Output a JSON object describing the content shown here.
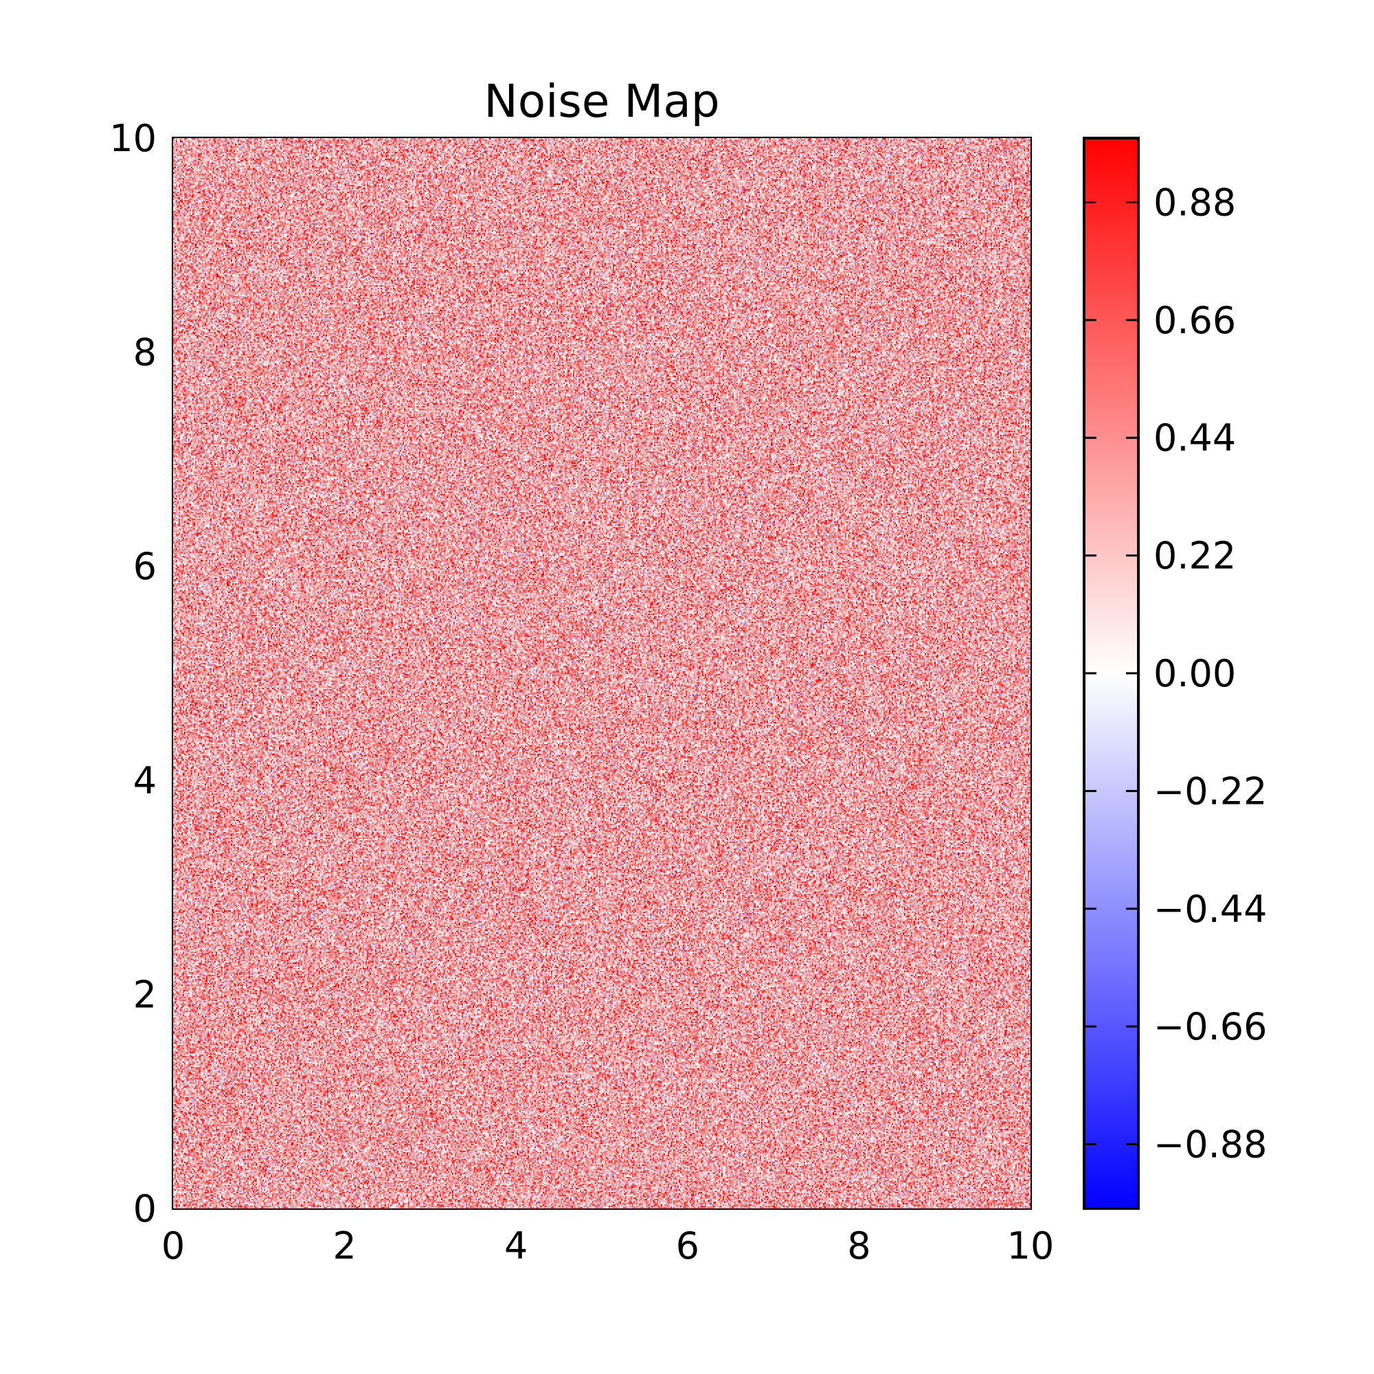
{
  "chart_data": {
    "type": "heatmap",
    "title": "Noise Map",
    "xlabel": "",
    "ylabel": "",
    "xlim": [
      0,
      10
    ],
    "ylim": [
      0,
      10
    ],
    "x_ticks": [
      {
        "value": 0,
        "label": "0"
      },
      {
        "value": 2,
        "label": "2"
      },
      {
        "value": 4,
        "label": "4"
      },
      {
        "value": 6,
        "label": "6"
      },
      {
        "value": 8,
        "label": "8"
      },
      {
        "value": 10,
        "label": "10"
      }
    ],
    "y_ticks": [
      {
        "value": 0,
        "label": "0"
      },
      {
        "value": 2,
        "label": "2"
      },
      {
        "value": 4,
        "label": "4"
      },
      {
        "value": 6,
        "label": "6"
      },
      {
        "value": 8,
        "label": "8"
      },
      {
        "value": 10,
        "label": "10"
      }
    ],
    "colorbar": {
      "colormap": "bwr",
      "vmin": -1.0,
      "vmax": 1.0,
      "colors": [
        "#0000ff",
        "#ffffff",
        "#ff0000"
      ],
      "ticks": [
        {
          "value": 0.88,
          "label": "0.88"
        },
        {
          "value": 0.66,
          "label": "0.66"
        },
        {
          "value": 0.44,
          "label": "0.44"
        },
        {
          "value": 0.22,
          "label": "0.22"
        },
        {
          "value": 0.0,
          "label": "0.00"
        },
        {
          "value": -0.22,
          "label": "−0.22"
        },
        {
          "value": -0.44,
          "label": "−0.44"
        },
        {
          "value": -0.66,
          "label": "−0.66"
        },
        {
          "value": -0.88,
          "label": "−0.88"
        }
      ]
    },
    "values_distribution": {
      "kind": "random-noise",
      "mean": 0.35,
      "std": 0.3
    },
    "grid": false,
    "legend": "none"
  }
}
